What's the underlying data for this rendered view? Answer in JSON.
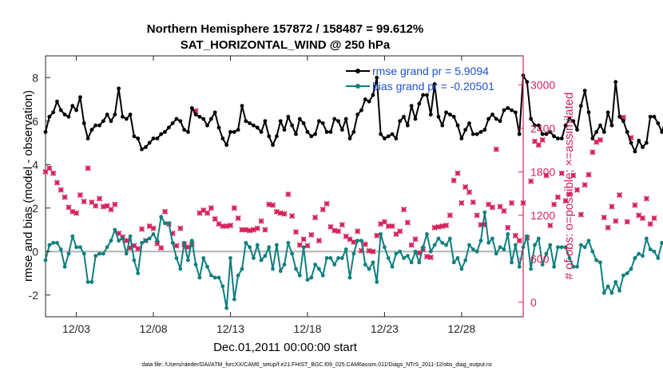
{
  "chart_data": {
    "type": "line",
    "title": "Northern Hemisphere 157872 / 158487 = 99.612%",
    "subtitle": "SAT_HORIZONTAL_WIND @ 250 hPa",
    "xlabel": "Dec.01,2011 00:00:00 start",
    "ylabel": "rmse and bias (model - observation)",
    "ylabel_right": "# of obs: o=possible; ×=assimilated",
    "xlim": [
      1,
      32
    ],
    "ylim": [
      -3,
      9
    ],
    "ylim_right": [
      -200,
      3400
    ],
    "x_tick_values": [
      3,
      8,
      13,
      18,
      23,
      28
    ],
    "x_tick_labels": [
      "12/03",
      "12/08",
      "12/13",
      "12/18",
      "12/23",
      "12/28"
    ],
    "y_ticks": [
      -2,
      0,
      2,
      4,
      6,
      8
    ],
    "y_ticks_right": [
      0,
      600,
      1200,
      1800,
      2400,
      3000
    ],
    "zero_line": 0,
    "x_start": 1,
    "x_step": 0.25,
    "footer": "data file: /Users/raeder/DAI/ATM_forcXX/CAM6_setup/f.e21.FHIST_BGC.f09_025.CAM6assim.011/Diags_NTrS_2011-12/obs_diag_output.nc",
    "colors": {
      "rmse": "#000000",
      "bias": "#0f7f7f",
      "obs": "#d6225a",
      "zero_line": "#b4b4b4",
      "right_axis": "#d6225a",
      "legend_text": "#1f4fd6"
    },
    "series": [
      {
        "name": "rmse grand pr = 5.9094",
        "axis": "left",
        "values": [
          5.5,
          6.2,
          6.4,
          6.9,
          6.5,
          6.3,
          6.2,
          6.7,
          6.5,
          7.1,
          5.9,
          5.2,
          5.6,
          5.8,
          5.8,
          6.0,
          6.3,
          6.0,
          6.3,
          7.5,
          6.2,
          6.1,
          6.3,
          5.3,
          5.2,
          4.7,
          4.8,
          5.0,
          5.2,
          5.2,
          5.4,
          5.5,
          5.7,
          5.9,
          6.1,
          6.0,
          5.6,
          5.5,
          6.6,
          6.3,
          6.2,
          6.1,
          5.8,
          6.1,
          6.4,
          5.7,
          5.2,
          4.9,
          5.5,
          5.5,
          5.6,
          6.7,
          6.0,
          5.9,
          5.8,
          5.7,
          5.5,
          6.0,
          5.3,
          4.9,
          5.3,
          6.0,
          5.6,
          6.2,
          5.8,
          5.4,
          6.1,
          5.9,
          5.5,
          5.3,
          5.4,
          6.0,
          5.9,
          5.5,
          5.5,
          6.1,
          6.0,
          5.6,
          6.1,
          5.2,
          5.5,
          6.3,
          6.5,
          7.0,
          6.9,
          7.2,
          8.0,
          5.4,
          5.2,
          5.3,
          5.4,
          5.2,
          6.0,
          6.2,
          5.8,
          6.7,
          6.1,
          6.8,
          7.2,
          7.2,
          6.3,
          7.7,
          6.2,
          5.8,
          6.4,
          6.3,
          6.2,
          5.8,
          5.2,
          5.6,
          5.9,
          5.4,
          5.4,
          5.5,
          5.6,
          6.1,
          6.3,
          6.1,
          6.0,
          6.5,
          6.6,
          6.5,
          6.4,
          5.4,
          8.1,
          7.8,
          6.1,
          5.8,
          5.8,
          5.4,
          5.4,
          5.5,
          5.3,
          5.2,
          5.2,
          5.8,
          6.1,
          6.0,
          5.6,
          6.7,
          7.4,
          6.4,
          5.2,
          5.5,
          5.8,
          5.5,
          6.4,
          5.8,
          7.8,
          6.2,
          6.0,
          5.5,
          5.0,
          4.6,
          5.1,
          4.8,
          5.0,
          6.2,
          6.2,
          5.9,
          5.5,
          6.1
        ]
      },
      {
        "name": "bias grand pr = -0.20501",
        "axis": "left",
        "values": [
          -0.4,
          0.3,
          0.4,
          0.4,
          0.1,
          -0.7,
          -0.1,
          0.7,
          0.2,
          0.2,
          -0.1,
          -1.4,
          -1.4,
          -0.2,
          -0.1,
          -0.1,
          0.2,
          0.5,
          1.0,
          0.5,
          0.6,
          -0.1,
          0.7,
          -0.4,
          -1.0,
          0.4,
          0.5,
          0.6,
          0.8,
          0.5,
          1.6,
          1.3,
          1.3,
          0.4,
          -0.3,
          -0.8,
          0.4,
          -0.4,
          0.5,
          -0.6,
          -1.2,
          -0.3,
          -0.7,
          -1.1,
          -1.2,
          -1.2,
          -1.6,
          -2.6,
          -0.3,
          -2.2,
          -1.1,
          -0.8,
          0.4,
          0.2,
          -0.3,
          0.3,
          -0.4,
          -0.2,
          0.2,
          -0.8,
          0.3,
          -0.9,
          -0.6,
          0.4,
          -0.1,
          -0.8,
          -1.1,
          0.2,
          -1.3,
          -1.2,
          -0.6,
          -0.8,
          -1.1,
          -0.3,
          -0.3,
          -0.6,
          -0.3,
          -0.3,
          0.1,
          -1.2,
          -0.1,
          0.5,
          0.5,
          -0.6,
          -0.8,
          -0.5,
          -1.4,
          0.8,
          0.2,
          -0.3,
          -0.7,
          -0.1,
          0.0,
          -0.3,
          -0.2,
          -0.5,
          0.0,
          -0.5,
          0.2,
          0.8,
          0.0,
          0.3,
          0.6,
          0.4,
          0.3,
          0.6,
          -0.5,
          -0.3,
          -0.8,
          -0.4,
          0.3,
          0.1,
          0.0,
          0.5,
          1.8,
          0.4,
          0.6,
          -0.1,
          0.2,
          0.1,
          0.8,
          -0.5,
          0.3,
          -0.7,
          0.2,
          0.7,
          -0.8,
          0.3,
          0.6,
          -0.6,
          -0.1,
          0.3,
          -0.7,
          0.2,
          0.2,
          0.2,
          -0.3,
          -0.7,
          -0.7,
          0.3,
          0.2,
          0.5,
          0.0,
          -0.4,
          -0.5,
          -1.9,
          -1.6,
          -1.9,
          -1.4,
          -1.8,
          -1.1,
          -1.0,
          -0.8,
          -0.3,
          -0.1,
          -0.2,
          0.6,
          0.1,
          0.0,
          -0.3,
          0.4,
          0.2,
          0.1,
          0.9,
          0.2,
          0.2,
          0.2
        ]
      },
      {
        "name": "# of obs assimilated",
        "axis": "right",
        "values": [
          1800,
          1850,
          1780,
          1650,
          1550,
          1450,
          1310,
          1250,
          1230,
          1480,
          1390,
          1850,
          1380,
          1330,
          1430,
          1320,
          1330,
          1280,
          1350,
          950,
          900,
          850,
          750,
          780,
          740,
          1010,
          850,
          1050,
          1020,
          810,
          750,
          1250,
          1080,
          950,
          780,
          1020,
          800,
          760,
          800,
          2640,
          1230,
          1270,
          1230,
          1300,
          1150,
          1080,
          1050,
          1050,
          1060,
          1300,
          1160,
          1000,
          1000,
          990,
          1000,
          1020,
          1120,
          1000,
          1350,
          1340,
          1250,
          1230,
          1220,
          1490,
          1190,
          970,
          790,
          870,
          780,
          930,
          1170,
          850,
          1280,
          1360,
          1040,
          990,
          980,
          1070,
          910,
          870,
          830,
          980,
          710,
          800,
          710,
          700,
          920,
          1080,
          1110,
          1050,
          1050,
          940,
          980,
          1280,
          1100,
          790,
          870,
          680,
          730,
          630,
          620,
          1030,
          1040,
          1050,
          1060,
          1200,
          1680,
          1780,
          1370,
          1590,
          1520,
          1380,
          1200,
          1070,
          1070,
          1350,
          1310,
          2110,
          1320,
          1260,
          1030,
          1370,
          920,
          850,
          1370,
          890,
          1670,
          2220,
          2170,
          2240,
          1750,
          1060,
          1350,
          1450,
          1780,
          1400,
          1490,
          1750,
          1550,
          1210,
          1620,
          1760,
          2070,
          2210,
          2240,
          1170,
          1030,
          1320,
          1120,
          1480,
          2550,
          1110,
          2270,
          1340,
          1200,
          1160,
          1430,
          1080,
          1160
        ]
      },
      {
        "name": "# of obs possible",
        "axis": "right",
        "values": [
          1800,
          1850,
          1780,
          1650,
          1550,
          1450,
          1310,
          1250,
          1230,
          1480,
          1390,
          1850,
          1380,
          1330,
          1430,
          1320,
          1330,
          1280,
          1350,
          950,
          900,
          850,
          750,
          780,
          740,
          1010,
          850,
          1050,
          1020,
          810,
          750,
          1250,
          1080,
          950,
          780,
          1020,
          800,
          760,
          800,
          2640,
          1230,
          1270,
          1230,
          1300,
          1150,
          1080,
          1050,
          1050,
          1060,
          1300,
          1160,
          1000,
          1000,
          990,
          1000,
          1020,
          1120,
          1000,
          1350,
          1340,
          1250,
          1230,
          1220,
          1490,
          1190,
          970,
          790,
          870,
          780,
          930,
          1170,
          850,
          1280,
          1360,
          1040,
          990,
          980,
          1070,
          910,
          870,
          830,
          980,
          710,
          800,
          710,
          700,
          920,
          1080,
          1110,
          1050,
          1050,
          940,
          980,
          1280,
          1100,
          790,
          870,
          680,
          730,
          630,
          620,
          1030,
          1040,
          1050,
          1060,
          1200,
          1680,
          1780,
          1370,
          1590,
          1520,
          1380,
          1200,
          1070,
          1070,
          1350,
          1310,
          2110,
          1320,
          1260,
          1030,
          1370,
          920,
          850,
          1370,
          890,
          1670,
          2220,
          2170,
          2240,
          1750,
          1060,
          1350,
          1450,
          1780,
          1400,
          1490,
          1750,
          1550,
          1210,
          1620,
          1760,
          2070,
          2210,
          2240,
          1170,
          1030,
          1320,
          1120,
          1480,
          2550,
          1110,
          2270,
          1340,
          1200,
          1160,
          1430,
          1080,
          1160
        ]
      }
    ]
  }
}
